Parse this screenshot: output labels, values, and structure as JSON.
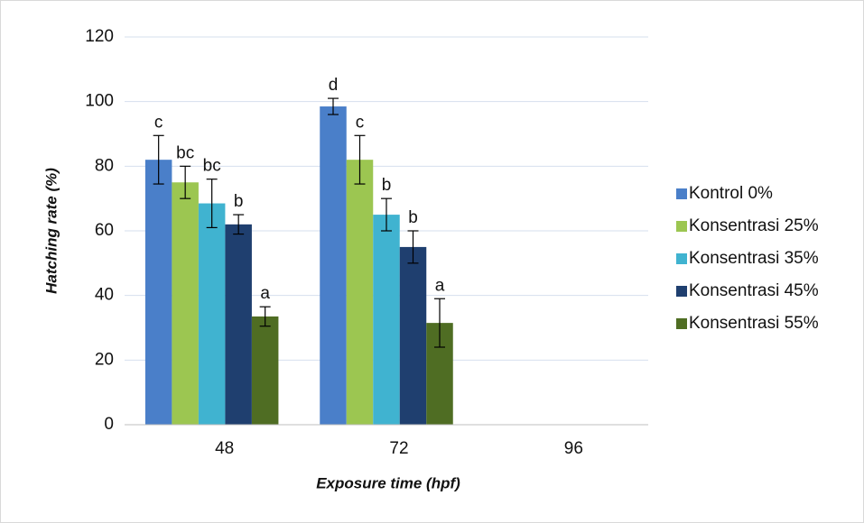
{
  "chart_data": {
    "type": "bar",
    "xlabel": "Exposure time (hpf)",
    "ylabel": "Hatching rate (%)",
    "categories": [
      "48",
      "72",
      "96"
    ],
    "ylim": [
      0,
      120
    ],
    "yticks": [
      0,
      20,
      40,
      60,
      80,
      100,
      120
    ],
    "grid": true,
    "legend": "right",
    "series": [
      {
        "name": "Kontrol 0%",
        "color": "#4a7fc9",
        "values": [
          82,
          98.5,
          null
        ],
        "errors": [
          7.5,
          2.5,
          null
        ],
        "letters": [
          "c",
          "d",
          null
        ]
      },
      {
        "name": "Konsentrasi 25%",
        "color": "#9cc651",
        "values": [
          75,
          82,
          null
        ],
        "errors": [
          5,
          7.5,
          null
        ],
        "letters": [
          "bc",
          "c",
          null
        ]
      },
      {
        "name": "Konsentrasi 35%",
        "color": "#40b3d0",
        "values": [
          68.5,
          65,
          null
        ],
        "errors": [
          7.5,
          5,
          null
        ],
        "letters": [
          "bc",
          "b",
          null
        ]
      },
      {
        "name": "Konsentrasi 45%",
        "color": "#1f3f6f",
        "values": [
          62,
          55,
          null
        ],
        "errors": [
          3,
          5,
          null
        ],
        "letters": [
          "b",
          "b",
          null
        ]
      },
      {
        "name": "Konsentrasi 55%",
        "color": "#4f6d23",
        "values": [
          33.5,
          31.5,
          null
        ],
        "errors": [
          3,
          7.5,
          null
        ],
        "letters": [
          "a",
          "a",
          null
        ]
      }
    ]
  }
}
